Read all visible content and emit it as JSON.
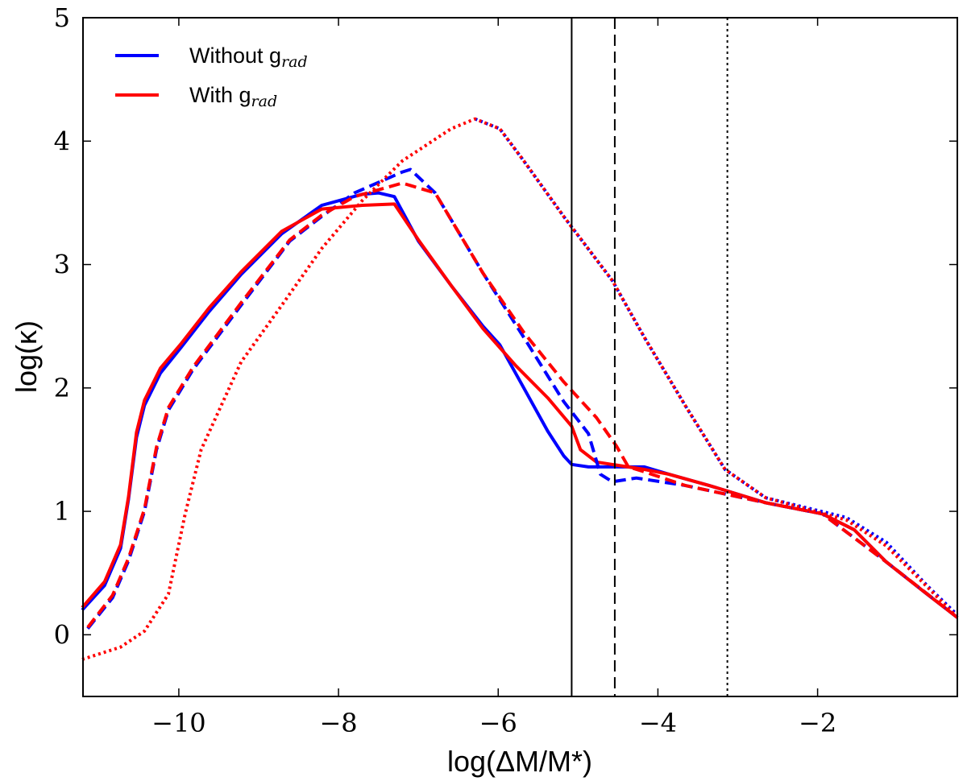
{
  "chart_data": {
    "type": "line",
    "title": "",
    "xlabel": "log(ΔM/M*)",
    "ylabel": "log(κ)",
    "xlim": [
      -11.2,
      -0.25
    ],
    "ylim": [
      -0.5,
      5
    ],
    "xticks": [
      -10,
      -8,
      -6,
      -4,
      -2
    ],
    "xtick_labels": [
      "−10",
      "−8",
      "−6",
      "−4",
      "−2"
    ],
    "yticks": [
      0,
      1,
      2,
      3,
      4,
      5
    ],
    "ytick_labels": [
      "0",
      "1",
      "2",
      "3",
      "4",
      "5"
    ],
    "legend": {
      "placement": "top-left",
      "entries": [
        {
          "label": "Without g",
          "sub": "rad",
          "color": "#0000ff"
        },
        {
          "label": "With g",
          "sub": "rad",
          "color": "#ff0000"
        }
      ]
    },
    "vlines": [
      {
        "x": -5.08,
        "style": "solid"
      },
      {
        "x": -4.54,
        "style": "dashed"
      },
      {
        "x": -3.13,
        "style": "dotted"
      }
    ],
    "series": [
      {
        "name": "Without grad solid",
        "color": "#0000ff",
        "style": "solid",
        "x": [
          -11.21,
          -10.93,
          -10.73,
          -10.63,
          -10.53,
          -10.43,
          -10.23,
          -9.97,
          -9.62,
          -9.22,
          -8.71,
          -8.21,
          -7.7,
          -7.5,
          -7.3,
          -7.0,
          -6.59,
          -6.19,
          -5.98,
          -5.68,
          -5.38,
          -5.18,
          -5.08,
          -4.87,
          -4.17,
          -3.86,
          -3.36,
          -2.65,
          -1.94,
          -1.54,
          -1.14,
          -0.63,
          -0.25
        ],
        "y": [
          0.2,
          0.4,
          0.7,
          1.1,
          1.6,
          1.86,
          2.12,
          2.33,
          2.62,
          2.92,
          3.25,
          3.48,
          3.57,
          3.58,
          3.55,
          3.19,
          2.83,
          2.5,
          2.35,
          2.0,
          1.65,
          1.45,
          1.38,
          1.36,
          1.36,
          1.3,
          1.21,
          1.07,
          0.98,
          0.85,
          0.59,
          0.33,
          0.14
        ]
      },
      {
        "name": "With grad solid",
        "color": "#ff0000",
        "style": "solid",
        "x": [
          -11.21,
          -10.93,
          -10.73,
          -10.63,
          -10.53,
          -10.43,
          -10.23,
          -9.97,
          -9.62,
          -9.22,
          -8.71,
          -8.21,
          -7.7,
          -7.3,
          -7.0,
          -6.59,
          -6.19,
          -5.78,
          -5.38,
          -5.08,
          -4.97,
          -4.77,
          -4.17,
          -3.86,
          -3.36,
          -2.65,
          -1.94,
          -1.54,
          -1.14,
          -0.63,
          -0.25
        ],
        "y": [
          0.22,
          0.43,
          0.73,
          1.12,
          1.64,
          1.9,
          2.16,
          2.36,
          2.65,
          2.94,
          3.27,
          3.45,
          3.48,
          3.49,
          3.2,
          2.83,
          2.48,
          2.18,
          1.92,
          1.69,
          1.5,
          1.4,
          1.34,
          1.3,
          1.21,
          1.07,
          0.98,
          0.85,
          0.59,
          0.33,
          0.14
        ]
      },
      {
        "name": "Without grad dashed",
        "color": "#0000ff",
        "style": "dashed",
        "x": [
          -11.14,
          -10.83,
          -10.63,
          -10.43,
          -10.28,
          -10.13,
          -9.82,
          -9.22,
          -8.61,
          -8.21,
          -7.8,
          -7.2,
          -7.1,
          -6.79,
          -6.19,
          -5.68,
          -5.18,
          -4.87,
          -4.72,
          -4.57,
          -4.27,
          -3.66,
          -2.65,
          -1.94,
          -1.14,
          -0.25
        ],
        "y": [
          0.05,
          0.3,
          0.6,
          1.0,
          1.5,
          1.82,
          2.15,
          2.67,
          3.19,
          3.39,
          3.58,
          3.75,
          3.77,
          3.58,
          2.93,
          2.41,
          1.89,
          1.63,
          1.3,
          1.24,
          1.27,
          1.21,
          1.07,
          0.98,
          0.59,
          0.14
        ]
      },
      {
        "name": "With grad dashed",
        "color": "#ff0000",
        "style": "dashed",
        "x": [
          -11.14,
          -10.83,
          -10.63,
          -10.43,
          -10.28,
          -10.13,
          -9.82,
          -9.22,
          -8.61,
          -8.21,
          -7.8,
          -7.2,
          -6.79,
          -6.19,
          -5.68,
          -5.18,
          -4.77,
          -4.52,
          -4.37,
          -4.17,
          -3.66,
          -2.65,
          -1.94,
          -1.14,
          -0.25
        ],
        "y": [
          0.06,
          0.32,
          0.62,
          1.02,
          1.52,
          1.84,
          2.17,
          2.69,
          3.2,
          3.4,
          3.55,
          3.66,
          3.58,
          2.93,
          2.45,
          2.05,
          1.76,
          1.53,
          1.36,
          1.32,
          1.21,
          1.07,
          0.98,
          0.59,
          0.14
        ]
      },
      {
        "name": "Without grad dotted",
        "color": "#0000ff",
        "style": "dotted",
        "x": [
          -6.29,
          -5.98,
          -5.68,
          -5.18,
          -4.57,
          -4.17,
          -3.66,
          -3.16,
          -2.65,
          -1.64,
          -1.14,
          -0.63,
          -0.25
        ],
        "y": [
          4.18,
          4.1,
          3.84,
          3.39,
          2.87,
          2.41,
          1.86,
          1.34,
          1.11,
          0.95,
          0.75,
          0.4,
          0.16
        ]
      },
      {
        "name": "With grad dotted",
        "color": "#ff0000",
        "style": "dotted",
        "x": [
          -11.21,
          -10.73,
          -10.43,
          -10.13,
          -9.92,
          -9.72,
          -9.22,
          -8.71,
          -8.21,
          -7.7,
          -7.2,
          -6.59,
          -6.29,
          -5.98,
          -5.68,
          -5.18,
          -4.57,
          -4.17,
          -3.66,
          -3.16,
          -2.65,
          -1.64,
          -1.14,
          -0.63,
          -0.25
        ],
        "y": [
          -0.2,
          -0.1,
          0.03,
          0.33,
          0.98,
          1.5,
          2.21,
          2.67,
          3.13,
          3.52,
          3.84,
          4.1,
          4.18,
          4.1,
          3.84,
          3.39,
          2.87,
          2.41,
          1.86,
          1.34,
          1.11,
          0.93,
          0.72,
          0.39,
          0.14
        ]
      }
    ]
  }
}
